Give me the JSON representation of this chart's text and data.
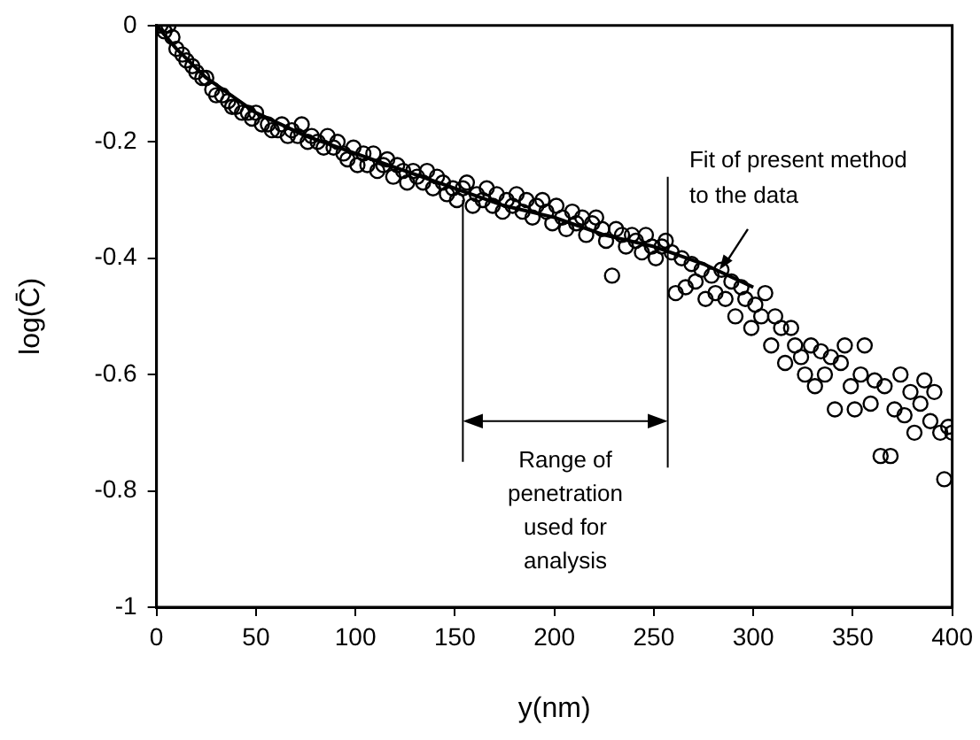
{
  "chart_data": {
    "type": "scatter",
    "xlabel": "y(nm)",
    "ylabel": "log(C̄)",
    "xlim": [
      0,
      400
    ],
    "ylim": [
      -1,
      0
    ],
    "xticks": [
      0,
      50,
      100,
      150,
      200,
      250,
      300,
      350,
      400
    ],
    "yticks": [
      0,
      -0.2,
      -0.4,
      -0.6,
      -0.8,
      -1
    ],
    "grid": false,
    "legend": false,
    "marker": "circle",
    "series": [
      {
        "color": "#000000",
        "x": [
          2,
          4,
          6,
          8,
          10,
          13,
          15,
          18,
          20,
          23,
          25,
          28,
          30,
          33,
          36,
          38,
          40,
          43,
          46,
          48,
          50,
          53,
          56,
          58,
          61,
          63,
          66,
          68,
          71,
          73,
          76,
          78,
          81,
          84,
          86,
          89,
          91,
          94,
          96,
          99,
          101,
          104,
          106,
          109,
          111,
          114,
          116,
          119,
          121,
          124,
          126,
          129,
          131,
          134,
          136,
          139,
          141,
          144,
          146,
          149,
          151,
          154,
          156,
          159,
          161,
          164,
          166,
          169,
          171,
          174,
          176,
          179,
          181,
          184,
          186,
          189,
          191,
          194,
          196,
          199,
          201,
          204,
          206,
          209,
          211,
          214,
          216,
          219,
          221,
          224,
          226,
          229,
          231,
          234,
          236,
          239,
          241,
          244,
          246,
          249,
          251,
          254,
          256,
          259,
          261,
          264,
          266,
          269,
          271,
          274,
          276,
          279,
          281,
          284,
          286,
          289,
          291,
          294,
          296,
          299,
          301,
          304,
          306,
          309,
          311,
          314,
          316,
          319,
          321,
          324,
          326,
          329,
          331,
          334,
          336,
          339,
          341,
          344,
          346,
          349,
          351,
          354,
          356,
          359,
          361,
          364,
          366,
          369,
          371,
          374,
          376,
          379,
          381,
          384,
          386,
          389,
          391,
          394,
          396,
          398,
          400
        ],
        "values": [
          0,
          -0.01,
          0,
          -0.02,
          -0.04,
          -0.05,
          -0.06,
          -0.07,
          -0.08,
          -0.09,
          -0.09,
          -0.11,
          -0.12,
          -0.12,
          -0.13,
          -0.14,
          -0.14,
          -0.15,
          -0.15,
          -0.16,
          -0.15,
          -0.17,
          -0.17,
          -0.18,
          -0.18,
          -0.17,
          -0.19,
          -0.18,
          -0.19,
          -0.17,
          -0.2,
          -0.19,
          -0.2,
          -0.21,
          -0.19,
          -0.21,
          -0.2,
          -0.22,
          -0.23,
          -0.21,
          -0.24,
          -0.22,
          -0.24,
          -0.22,
          -0.25,
          -0.24,
          -0.23,
          -0.26,
          -0.24,
          -0.25,
          -0.27,
          -0.25,
          -0.26,
          -0.27,
          -0.25,
          -0.28,
          -0.26,
          -0.27,
          -0.29,
          -0.28,
          -0.3,
          -0.28,
          -0.27,
          -0.31,
          -0.29,
          -0.3,
          -0.28,
          -0.31,
          -0.29,
          -0.32,
          -0.3,
          -0.31,
          -0.29,
          -0.32,
          -0.3,
          -0.33,
          -0.31,
          -0.3,
          -0.32,
          -0.34,
          -0.31,
          -0.33,
          -0.35,
          -0.32,
          -0.34,
          -0.33,
          -0.36,
          -0.34,
          -0.33,
          -0.35,
          -0.37,
          -0.43,
          -0.35,
          -0.36,
          -0.38,
          -0.36,
          -0.37,
          -0.39,
          -0.36,
          -0.38,
          -0.4,
          -0.38,
          -0.37,
          -0.39,
          -0.46,
          -0.4,
          -0.45,
          -0.41,
          -0.44,
          -0.42,
          -0.47,
          -0.43,
          -0.46,
          -0.42,
          -0.47,
          -0.44,
          -0.5,
          -0.45,
          -0.47,
          -0.52,
          -0.48,
          -0.5,
          -0.46,
          -0.55,
          -0.5,
          -0.52,
          -0.58,
          -0.52,
          -0.55,
          -0.57,
          -0.6,
          -0.55,
          -0.62,
          -0.56,
          -0.6,
          -0.57,
          -0.66,
          -0.58,
          -0.55,
          -0.62,
          -0.66,
          -0.6,
          -0.55,
          -0.65,
          -0.61,
          -0.74,
          -0.62,
          -0.74,
          -0.66,
          -0.6,
          -0.67,
          -0.63,
          -0.7,
          -0.65,
          -0.61,
          -0.68,
          -0.63,
          -0.7,
          -0.78,
          -0.69,
          -0.7
        ]
      },
      {
        "type": "line",
        "color": "#000000",
        "marker": "none",
        "line_style": "solid",
        "x": [
          0,
          10,
          25,
          50,
          75,
          100,
          125,
          150,
          175,
          200,
          225,
          250,
          275,
          300
        ],
        "values": [
          0,
          -0.04,
          -0.09,
          -0.15,
          -0.19,
          -0.22,
          -0.25,
          -0.28,
          -0.31,
          -0.33,
          -0.36,
          -0.38,
          -0.41,
          -0.45
        ]
      }
    ],
    "ref_lines": [
      {
        "axis": "x",
        "value": 154
      },
      {
        "axis": "x",
        "value": 257
      }
    ],
    "annotations": [
      {
        "text": "Fit of present method to the data",
        "x": 283,
        "y": -0.42
      },
      "Range of penetration used for analysis"
    ]
  }
}
